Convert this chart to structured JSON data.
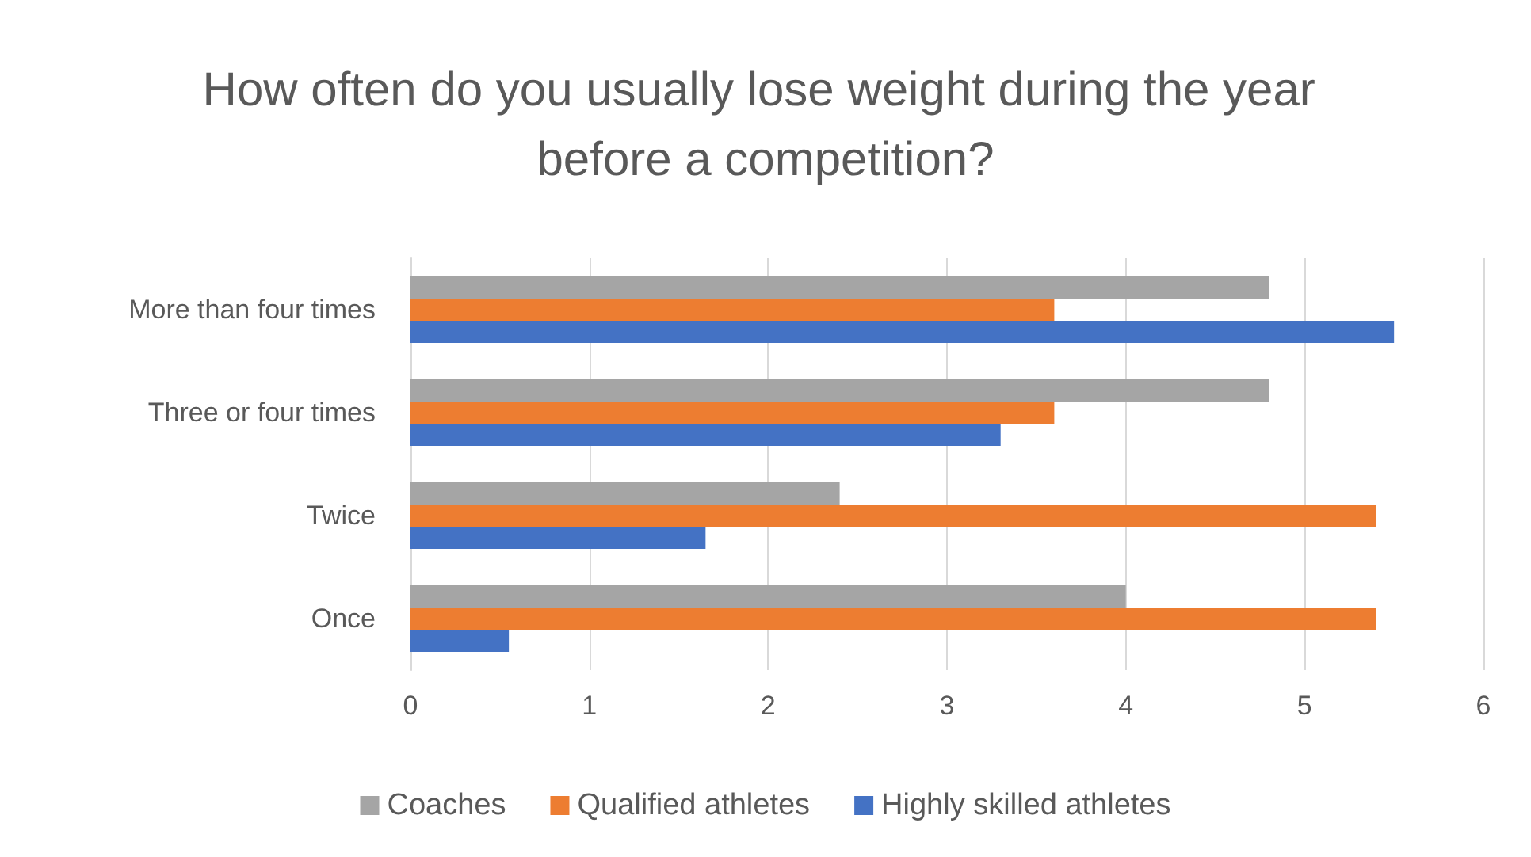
{
  "chart_data": {
    "type": "bar",
    "orientation": "horizontal",
    "title": "How often do you usually lose weight during the year before a competition?",
    "categories": [
      "More than four times",
      "Three or four times",
      "Twice",
      "Once"
    ],
    "series": [
      {
        "name": "Coaches",
        "color": "#a5a5a5",
        "values": [
          4.8,
          4.8,
          2.4,
          4.0
        ]
      },
      {
        "name": "Qualified athletes",
        "color": "#ed7d31",
        "values": [
          3.6,
          3.6,
          5.4,
          5.4
        ]
      },
      {
        "name": "Highly skilled athletes",
        "color": "#4472c4",
        "values": [
          5.5,
          3.3,
          1.65,
          0.55
        ]
      }
    ],
    "xlim": [
      0,
      6
    ],
    "xticks": [
      0,
      1,
      2,
      3,
      4,
      5,
      6
    ],
    "grid": "x",
    "legend": "bottom"
  }
}
